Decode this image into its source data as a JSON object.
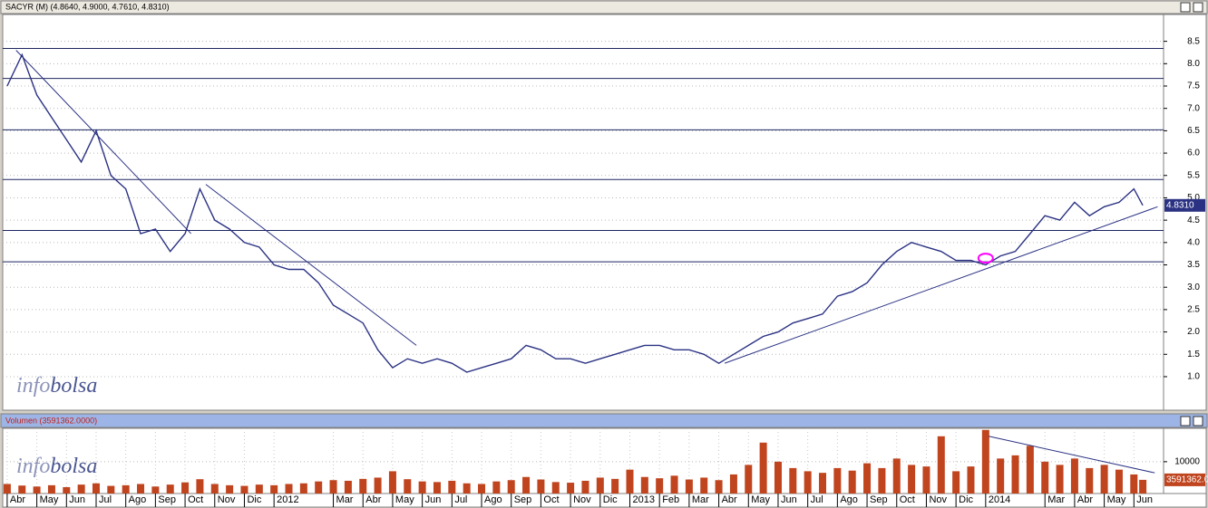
{
  "chart_data": [
    {
      "type": "line",
      "title": "SACYR (M) (4.8640, 4.9000, 4.7610, 4.8310)",
      "watermark": [
        "info",
        "bolsa"
      ],
      "last_label": "4.8310",
      "series": [
        {
          "name": "SACYR",
          "color": "#2b3283",
          "x": [
            0,
            0.5,
            1,
            1.5,
            2,
            2.5,
            3,
            3.5,
            4,
            4.5,
            5,
            5.5,
            6,
            6.5,
            7,
            7.5,
            8,
            8.5,
            9,
            9.5,
            10,
            10.5,
            11,
            11.5,
            12,
            12.5,
            13,
            13.5,
            14,
            14.5,
            15,
            15.5,
            16,
            16.5,
            17,
            17.5,
            18,
            18.5,
            19,
            19.5,
            20,
            20.5,
            21,
            21.5,
            22,
            22.5,
            23,
            23.5,
            24,
            24.5,
            25,
            25.5,
            26,
            26.5,
            27,
            27.5,
            28,
            28.5,
            29,
            29.5,
            30,
            30.5,
            31,
            31.5,
            32,
            32.5,
            33,
            33.5,
            34,
            34.5,
            35,
            35.5,
            36,
            36.5,
            37,
            37.5,
            38,
            38.3
          ],
          "values": [
            7.5,
            8.2,
            7.3,
            6.8,
            6.3,
            5.8,
            6.5,
            5.5,
            5.2,
            4.2,
            4.3,
            3.8,
            4.2,
            5.2,
            4.5,
            4.3,
            4.0,
            3.9,
            3.5,
            3.4,
            3.4,
            3.1,
            2.6,
            2.4,
            2.2,
            1.6,
            1.2,
            1.4,
            1.3,
            1.4,
            1.3,
            1.1,
            1.2,
            1.3,
            1.4,
            1.7,
            1.6,
            1.4,
            1.4,
            1.3,
            1.4,
            1.5,
            1.6,
            1.7,
            1.7,
            1.6,
            1.6,
            1.5,
            1.3,
            1.5,
            1.7,
            1.9,
            2.0,
            2.2,
            2.3,
            2.4,
            2.8,
            2.9,
            3.1,
            3.5,
            3.8,
            4.0,
            3.9,
            3.8,
            3.6,
            3.6,
            3.5,
            3.7,
            3.8,
            4.2,
            4.6,
            4.5,
            4.9,
            4.6,
            4.8,
            4.9,
            5.2,
            4.831
          ]
        }
      ],
      "xlim": [
        -0.15,
        39
      ],
      "ylim": [
        0.25,
        9.1
      ],
      "yticks": [
        {
          "value": 1,
          "label": "1.0"
        },
        1.5,
        {
          "value": 2,
          "label": "2.0"
        },
        2.5,
        {
          "value": 3,
          "label": "3.0"
        },
        3.5,
        {
          "value": 4,
          "label": "4.0"
        },
        4.5,
        {
          "value": 5,
          "label": "5.0"
        },
        5.5,
        {
          "value": 6,
          "label": "6.0"
        },
        6.5,
        {
          "value": 7,
          "label": "7.0"
        },
        7.5,
        {
          "value": 8,
          "label": "8.0"
        },
        8.5
      ],
      "grid": true,
      "hlines": [
        8.34,
        7.67,
        6.52,
        5.41,
        4.27,
        3.57
      ],
      "trendlines": [
        {
          "x": [
            0.3,
            6.2
          ],
          "y": [
            8.3,
            4.2
          ]
        },
        {
          "x": [
            6.7,
            13.8
          ],
          "y": [
            5.3,
            1.7
          ]
        },
        {
          "x": [
            24.2,
            38.8
          ],
          "y": [
            1.3,
            4.8
          ]
        }
      ],
      "trend_color": "#2b3283",
      "highlight": {
        "x": 33.0,
        "y": 3.65,
        "color": "#ff00ff"
      }
    },
    {
      "type": "bar",
      "title": "Volumen (3591362.0000)",
      "watermark": [
        "info",
        "bolsa"
      ],
      "last_label": "3591362.0",
      "series": [
        {
          "name": "Volumen",
          "color": "#c0441e",
          "x": [
            0,
            0.5,
            1,
            1.5,
            2,
            2.5,
            3,
            3.5,
            4,
            4.5,
            5,
            5.5,
            6,
            6.5,
            7,
            7.5,
            8,
            8.5,
            9,
            9.5,
            10,
            10.5,
            11,
            11.5,
            12,
            12.5,
            13,
            13.5,
            14,
            14.5,
            15,
            15.5,
            16,
            16.5,
            17,
            17.5,
            18,
            18.5,
            19,
            19.5,
            20,
            20.5,
            21,
            21.5,
            22,
            22.5,
            23,
            23.5,
            24,
            24.5,
            25,
            25.5,
            26,
            26.5,
            27,
            27.5,
            28,
            28.5,
            29,
            29.5,
            30,
            30.5,
            31,
            31.5,
            32,
            32.5,
            33,
            33.5,
            34,
            34.5,
            35,
            35.5,
            36,
            36.5,
            37,
            37.5,
            38,
            38.3
          ],
          "values": [
            3000,
            2500,
            2200,
            2600,
            2000,
            2800,
            3200,
            2400,
            2600,
            3000,
            2200,
            2800,
            3500,
            4500,
            3000,
            2600,
            2400,
            2800,
            2600,
            3000,
            3200,
            3800,
            4200,
            4000,
            4600,
            5000,
            7000,
            4500,
            3800,
            3600,
            4000,
            3200,
            3000,
            3800,
            4200,
            5200,
            4400,
            3600,
            3400,
            4000,
            5000,
            4600,
            7500,
            5200,
            4800,
            5600,
            4400,
            5000,
            4200,
            6000,
            9000,
            16000,
            10000,
            8000,
            7000,
            6500,
            8000,
            7200,
            9500,
            8000,
            11000,
            9000,
            8500,
            18000,
            7000,
            8500,
            20000,
            11000,
            12000,
            15000,
            10000,
            9000,
            11000,
            8000,
            9000,
            7500,
            6000,
            4300
          ]
        }
      ],
      "xlim": [
        -0.15,
        39
      ],
      "ylim": [
        0,
        20500
      ],
      "yticks": [
        10000
      ],
      "grid": true,
      "xticks": [
        {
          "value": 0,
          "label": "Abr"
        },
        {
          "value": 1,
          "label": "May"
        },
        {
          "value": 2,
          "label": "Jun"
        },
        {
          "value": 3,
          "label": "Jul"
        },
        {
          "value": 4,
          "label": "Ago"
        },
        {
          "value": 5,
          "label": "Sep"
        },
        {
          "value": 6,
          "label": "Oct"
        },
        {
          "value": 7,
          "label": "Nov"
        },
        {
          "value": 8,
          "label": "Dic"
        },
        {
          "value": 9,
          "label": "2012"
        },
        {
          "value": 11,
          "label": "Mar"
        },
        {
          "value": 12,
          "label": "Abr"
        },
        {
          "value": 13,
          "label": "May"
        },
        {
          "value": 14,
          "label": "Jun"
        },
        {
          "value": 15,
          "label": "Jul"
        },
        {
          "value": 16,
          "label": "Ago"
        },
        {
          "value": 17,
          "label": "Sep"
        },
        {
          "value": 18,
          "label": "Oct"
        },
        {
          "value": 19,
          "label": "Nov"
        },
        {
          "value": 20,
          "label": "Dic"
        },
        {
          "value": 21,
          "label": "2013"
        },
        {
          "value": 22,
          "label": "Feb"
        },
        {
          "value": 23,
          "label": "Mar"
        },
        {
          "value": 24,
          "label": "Abr"
        },
        {
          "value": 25,
          "label": "May"
        },
        {
          "value": 26,
          "label": "Jun"
        },
        {
          "value": 27,
          "label": "Jul"
        },
        {
          "value": 28,
          "label": "Ago"
        },
        {
          "value": 29,
          "label": "Sep"
        },
        {
          "value": 30,
          "label": "Oct"
        },
        {
          "value": 31,
          "label": "Nov"
        },
        {
          "value": 32,
          "label": "Dic"
        },
        {
          "value": 33,
          "label": "2014"
        },
        {
          "value": 35,
          "label": "Mar"
        },
        {
          "value": 36,
          "label": "Abr"
        },
        {
          "value": 37,
          "label": "May"
        },
        {
          "value": 38,
          "label": "Jun"
        }
      ],
      "trendlines": [
        {
          "x": [
            33.1,
            38.7
          ],
          "y": [
            18000,
            6500
          ]
        }
      ],
      "trend_color": "#2b3283"
    }
  ]
}
